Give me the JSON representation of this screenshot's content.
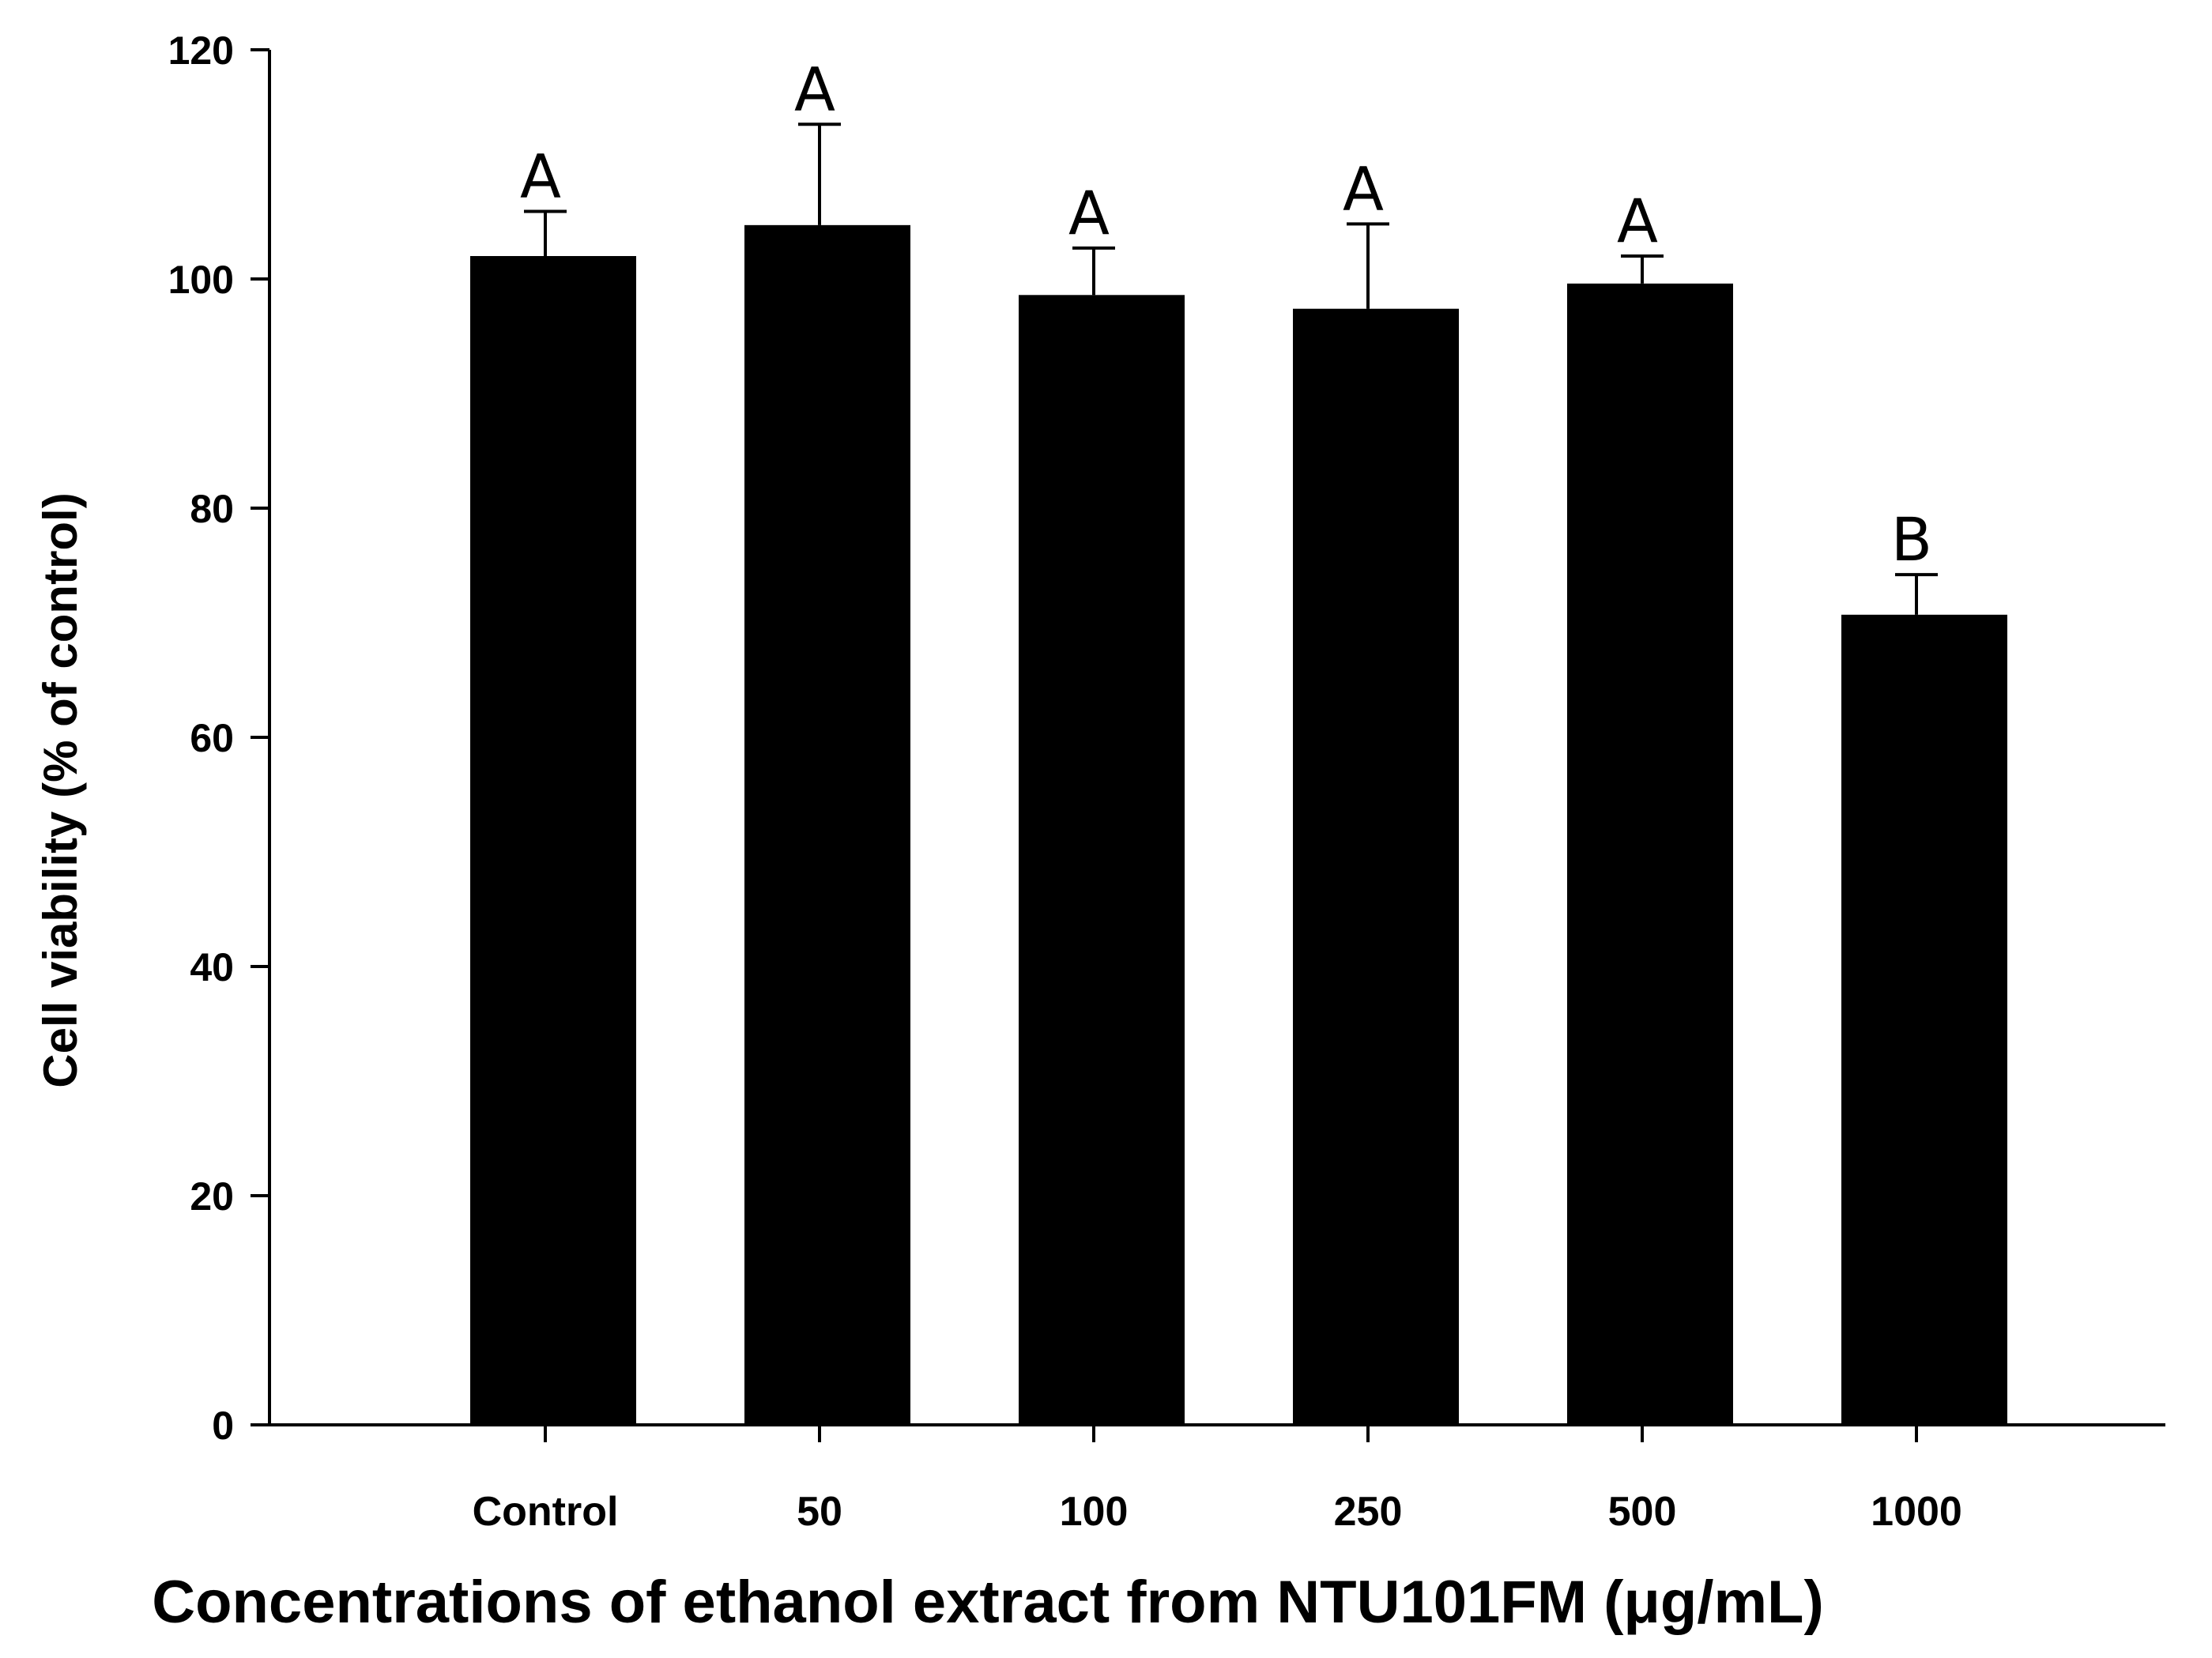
{
  "chart_data": {
    "type": "bar",
    "title": "",
    "xlabel": "Concentrations of ethanol extract from NTU101FM (μg/mL)",
    "ylabel": "Cell viability (% of control)",
    "ylim": [
      0,
      120
    ],
    "yticks": [
      0,
      20,
      40,
      60,
      80,
      100,
      120
    ],
    "categories": [
      "Control",
      "50",
      "100",
      "250",
      "500",
      "1000"
    ],
    "values": [
      102.0,
      104.7,
      98.6,
      97.4,
      99.6,
      70.7
    ],
    "error_upper": [
      3.9,
      8.8,
      4.1,
      7.4,
      2.4,
      3.5
    ],
    "significance": [
      "A",
      "A",
      "A",
      "A",
      "A",
      "B"
    ],
    "legend": "none",
    "grid": false,
    "bar_color": "#000000"
  }
}
